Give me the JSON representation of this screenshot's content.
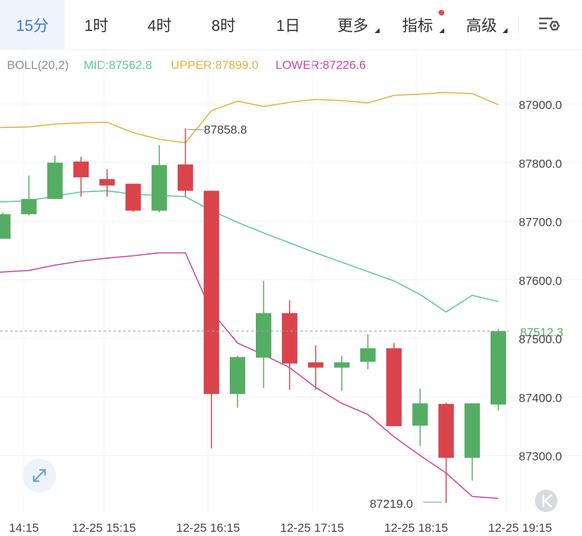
{
  "tabs": [
    {
      "label": "15分",
      "active": true,
      "dropdown": false,
      "badge": false
    },
    {
      "label": "1时",
      "active": false,
      "dropdown": false,
      "badge": false
    },
    {
      "label": "4时",
      "active": false,
      "dropdown": false,
      "badge": false
    },
    {
      "label": "8时",
      "active": false,
      "dropdown": false,
      "badge": false
    },
    {
      "label": "1日",
      "active": false,
      "dropdown": false,
      "badge": false
    },
    {
      "label": "更多",
      "active": false,
      "dropdown": true,
      "badge": false
    },
    {
      "label": "指标",
      "active": false,
      "dropdown": true,
      "badge": true
    },
    {
      "label": "高级",
      "active": false,
      "dropdown": true,
      "badge": false
    }
  ],
  "toolbar": {
    "settings_icon": "chart-settings-icon"
  },
  "indicator": {
    "name": "BOLL(20,2)",
    "mid_label": "MID:87562.8",
    "upper_label": "UPPER:87899.0",
    "lower_label": "LOWER:87226.6"
  },
  "colors": {
    "up": "#55ad63",
    "down": "#d9444d",
    "mid": "#5cc8a4",
    "upper": "#e6b33c",
    "lower": "#c948a8",
    "active_tab": "#3d7ad6"
  },
  "chart_data": {
    "type": "candlestick",
    "interval": "15m",
    "x_tick_labels": [
      "14:15",
      "12-25 15:15",
      "12-25 16:15",
      "12-25 17:15",
      "12-25 18:15",
      "12-25 19:15"
    ],
    "y_tick_labels": [
      "87900.0",
      "87800.0",
      "87700.0",
      "87600.0",
      "87500.0",
      "87400.0",
      "87300.0"
    ],
    "y_ticks": [
      87900,
      87800,
      87700,
      87600,
      87500,
      87400,
      87300
    ],
    "ylim": [
      87200,
      88000
    ],
    "current_price_label": "87512.3",
    "current_price": 87512.3,
    "high_label": "87858.8",
    "high_value": 87858.8,
    "low_label": "87219.0",
    "low_value": 87219.0,
    "candles": [
      {
        "open": 87670,
        "close": 87712,
        "high": 87715,
        "low": 87670
      },
      {
        "open": 87712,
        "close": 87738,
        "high": 87778,
        "low": 87710
      },
      {
        "open": 87738,
        "close": 87800,
        "high": 87812,
        "low": 87738
      },
      {
        "open": 87802,
        "close": 87775,
        "high": 87810,
        "low": 87742
      },
      {
        "open": 87772,
        "close": 87761,
        "high": 87789,
        "low": 87742
      },
      {
        "open": 87764,
        "close": 87718,
        "high": 87764,
        "low": 87716
      },
      {
        "open": 87718,
        "close": 87796,
        "high": 87830,
        "low": 87715
      },
      {
        "open": 87797,
        "close": 87752,
        "high": 87858.8,
        "low": 87742
      },
      {
        "open": 87752,
        "close": 87405,
        "high": 87752,
        "low": 87312
      },
      {
        "open": 87405,
        "close": 87468,
        "high": 87470,
        "low": 87382
      },
      {
        "open": 87467,
        "close": 87543,
        "high": 87598,
        "low": 87415
      },
      {
        "open": 87543,
        "close": 87457,
        "high": 87565,
        "low": 87412
      },
      {
        "open": 87459,
        "close": 87450,
        "high": 87488,
        "low": 87412
      },
      {
        "open": 87450,
        "close": 87459,
        "high": 87470,
        "low": 87410
      },
      {
        "open": 87460,
        "close": 87483,
        "high": 87507,
        "low": 87447
      },
      {
        "open": 87483,
        "close": 87350,
        "high": 87492,
        "low": 87350
      },
      {
        "open": 87351,
        "close": 87389,
        "high": 87414,
        "low": 87316
      },
      {
        "open": 87388,
        "close": 87296,
        "high": 87390,
        "low": 87219
      },
      {
        "open": 87296,
        "close": 87389,
        "high": 87389,
        "low": 87257
      },
      {
        "open": 87387,
        "close": 87512.3,
        "high": 87516,
        "low": 87377
      }
    ],
    "boll_mid": [
      87733,
      87735,
      87743,
      87750,
      87752,
      87746,
      87744,
      87742,
      87718,
      87698,
      87680,
      87663,
      87646,
      87630,
      87614,
      87598,
      87575,
      87545,
      87573.5,
      87562.8
    ],
    "boll_upper": [
      87860,
      87861,
      87866,
      87868,
      87869,
      87851,
      87840,
      87834,
      87889,
      87905,
      87896,
      87903,
      87908,
      87906,
      87902,
      87915,
      87917,
      87920,
      87918,
      87899
    ],
    "boll_lower": [
      87613,
      87616,
      87625,
      87632,
      87637,
      87641,
      87646,
      87646,
      87546,
      87492,
      87472,
      87450,
      87416,
      87389,
      87370,
      87332,
      87300,
      87270,
      87230,
      87226.6
    ]
  }
}
